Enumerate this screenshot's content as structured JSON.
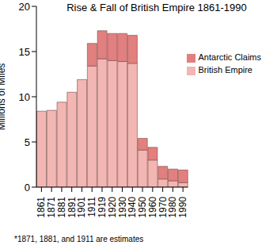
{
  "chart_data": {
    "type": "bar",
    "title": "Rise & Fall of British Empire 1861-1990",
    "y_label": "Millions of Miles",
    "annotations": [
      "*1871, 1881, and 1911 are estimates"
    ],
    "categories": [
      "1861",
      "1871",
      "1881",
      "1891",
      "1901",
      "1911",
      "1919",
      "1920",
      "1930",
      "1940",
      "1950",
      "1960",
      "1970",
      "1980",
      "1990"
    ],
    "series": [
      {
        "name": "British Empire",
        "color": "#f2b6b3",
        "values": [
          8.4,
          8.5,
          9.4,
          10.5,
          11.9,
          13.4,
          14.2,
          14.0,
          13.9,
          13.7,
          4.1,
          3.0,
          0.9,
          0.7,
          0.5
        ]
      },
      {
        "name": "Antarctic Claims",
        "color": "#e27f7f",
        "values": [
          0,
          0,
          0,
          0,
          0,
          2.5,
          3.1,
          3.0,
          3.1,
          3.1,
          1.3,
          1.4,
          1.4,
          1.3,
          1.4
        ]
      }
    ],
    "ylim": [
      0,
      20
    ],
    "yticks": [
      0,
      5,
      10,
      15,
      20
    ],
    "stacked": true,
    "legend": "upper right"
  }
}
